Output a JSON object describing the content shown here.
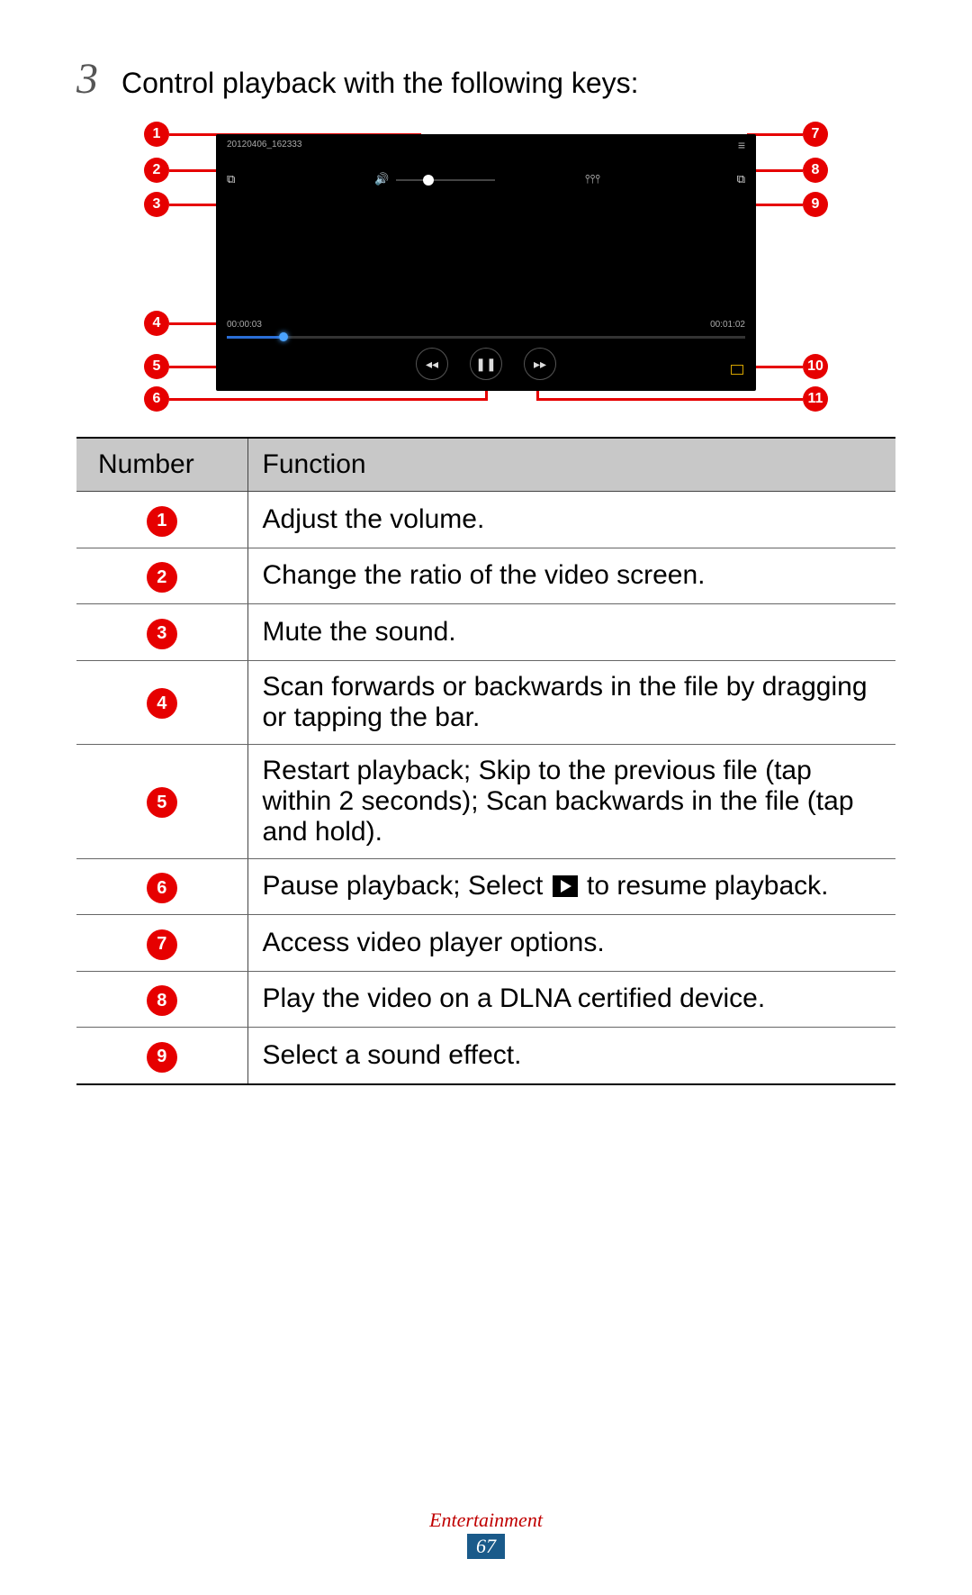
{
  "colors": {
    "callout_red": "#e60000",
    "table_header_bg": "#c8c8c8",
    "footer_label": "#c00000",
    "footer_page_bg": "#1a5a8a",
    "player_bg": "#000000",
    "seek_played": "#2a6ed6"
  },
  "step": {
    "number": "3",
    "text": "Control playback with the following keys:"
  },
  "player": {
    "filename": "20120406_162333",
    "time_elapsed": "00:00:03",
    "time_total": "00:01:02"
  },
  "callouts": {
    "left": [
      "1",
      "2",
      "3",
      "4",
      "5",
      "6"
    ],
    "right": [
      "7",
      "8",
      "9",
      "10",
      "11"
    ]
  },
  "table": {
    "headers": [
      "Number",
      "Function"
    ],
    "rows": [
      {
        "num": "1",
        "func": "Adjust the volume."
      },
      {
        "num": "2",
        "func": "Change the ratio of the video screen."
      },
      {
        "num": "3",
        "func": "Mute the sound."
      },
      {
        "num": "4",
        "func": "Scan forwards or backwards in the file by dragging or tapping the bar."
      },
      {
        "num": "5",
        "func": "Restart playback; Skip to the previous file (tap within 2 seconds); Scan backwards in the file (tap and hold)."
      },
      {
        "num": "6",
        "func_pre": "Pause playback; Select ",
        "func_post": " to resume playback.",
        "has_play_icon": true
      },
      {
        "num": "7",
        "func": "Access video player options."
      },
      {
        "num": "8",
        "func": "Play the video on a DLNA certified device."
      },
      {
        "num": "9",
        "func": "Select a sound effect."
      }
    ]
  },
  "footer": {
    "section": "Entertainment",
    "page": "67"
  }
}
